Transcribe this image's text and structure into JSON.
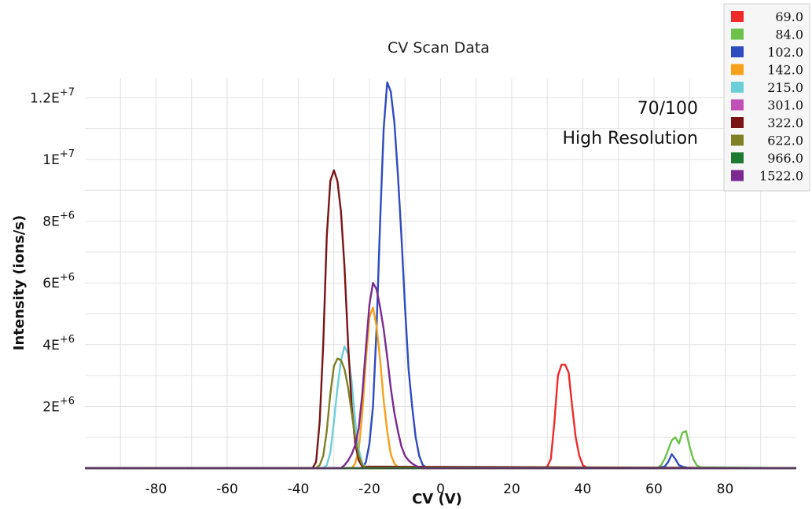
{
  "chart_data": {
    "type": "line",
    "title": "CV Scan Data",
    "xlabel": "CV (V)",
    "ylabel": "Intensity (ions/s)",
    "xlim": [
      -100,
      100
    ],
    "ylim": [
      0,
      12600000
    ],
    "x_ticks": [
      -80,
      -60,
      -40,
      -20,
      0,
      20,
      40,
      60,
      80
    ],
    "y_ticks": [
      {
        "base": "2E",
        "exp": "+6",
        "value": 2000000
      },
      {
        "base": "4E",
        "exp": "+6",
        "value": 4000000
      },
      {
        "base": "6E",
        "exp": "+6",
        "value": 6000000
      },
      {
        "base": "8E",
        "exp": "+6",
        "value": 8000000
      },
      {
        "base": "1E",
        "exp": "+7",
        "value": 10000000
      },
      {
        "base": "1.2E",
        "exp": "+7",
        "value": 12000000
      }
    ],
    "grid": true,
    "legend_position": "top-right",
    "annotations": [
      "70/100",
      "High Resolution"
    ],
    "series": [
      {
        "name": "69.0",
        "color": "#ee2a2a",
        "points": [
          [
            -100,
            0
          ],
          [
            29,
            0
          ],
          [
            30,
            0.05
          ],
          [
            31,
            0.3
          ],
          [
            32,
            1.5
          ],
          [
            33,
            3.0
          ],
          [
            34,
            3.35
          ],
          [
            35,
            3.35
          ],
          [
            36,
            3.1
          ],
          [
            37,
            2.0
          ],
          [
            38,
            1.0
          ],
          [
            39,
            0.4
          ],
          [
            40,
            0.1
          ],
          [
            41,
            0.02
          ],
          [
            100,
            0
          ]
        ]
      },
      {
        "name": "84.0",
        "color": "#6cc24a",
        "points": [
          [
            -100,
            0
          ],
          [
            61,
            0
          ],
          [
            62,
            0.1
          ],
          [
            63,
            0.3
          ],
          [
            64,
            0.6
          ],
          [
            65,
            0.9
          ],
          [
            66,
            1.0
          ],
          [
            67,
            0.8
          ],
          [
            68,
            1.15
          ],
          [
            69,
            1.2
          ],
          [
            70,
            0.7
          ],
          [
            71,
            0.3
          ],
          [
            72,
            0.1
          ],
          [
            73,
            0.03
          ],
          [
            100,
            0
          ]
        ]
      },
      {
        "name": "102.0",
        "color": "#2e4bbf",
        "points": [
          [
            -100,
            0
          ],
          [
            -22,
            0
          ],
          [
            -21,
            0.2
          ],
          [
            -20,
            0.8
          ],
          [
            -19,
            2.0
          ],
          [
            -18,
            4.5
          ],
          [
            -17,
            8.0
          ],
          [
            -16,
            11.0
          ],
          [
            -15,
            12.5
          ],
          [
            -14,
            12.2
          ],
          [
            -13,
            11.2
          ],
          [
            -12,
            9.5
          ],
          [
            -11,
            7.5
          ],
          [
            -10,
            5.2
          ],
          [
            -9,
            3.2
          ],
          [
            -8,
            2.0
          ],
          [
            -7,
            1.0
          ],
          [
            -6,
            0.4
          ],
          [
            -5,
            0.1
          ],
          [
            -4,
            0.02
          ],
          [
            60,
            0
          ],
          [
            63,
            0.05
          ],
          [
            64,
            0.2
          ],
          [
            65,
            0.45
          ],
          [
            66,
            0.3
          ],
          [
            67,
            0.1
          ],
          [
            68,
            0.05
          ],
          [
            70,
            0
          ],
          [
            100,
            0
          ]
        ]
      },
      {
        "name": "142.0",
        "color": "#f5a11a",
        "points": [
          [
            -100,
            0
          ],
          [
            -25,
            0
          ],
          [
            -24,
            0.15
          ],
          [
            -23,
            0.6
          ],
          [
            -22,
            1.8
          ],
          [
            -21,
            3.5
          ],
          [
            -20,
            4.9
          ],
          [
            -19,
            5.2
          ],
          [
            -18,
            4.6
          ],
          [
            -17,
            3.5
          ],
          [
            -16,
            2.2
          ],
          [
            -15,
            1.2
          ],
          [
            -14,
            0.45
          ],
          [
            -13,
            0.15
          ],
          [
            -12,
            0.03
          ],
          [
            100,
            0
          ]
        ]
      },
      {
        "name": "215.0",
        "color": "#6ccfd8",
        "points": [
          [
            -100,
            0
          ],
          [
            -33,
            0
          ],
          [
            -32,
            0.1
          ],
          [
            -31,
            0.5
          ],
          [
            -30,
            1.5
          ],
          [
            -29,
            2.6
          ],
          [
            -28,
            3.5
          ],
          [
            -27,
            3.95
          ],
          [
            -26,
            3.7
          ],
          [
            -25,
            2.8
          ],
          [
            -24,
            1.5
          ],
          [
            -23,
            0.6
          ],
          [
            -22,
            0.15
          ],
          [
            -21,
            0.02
          ],
          [
            100,
            0
          ]
        ]
      },
      {
        "name": "301.0",
        "color": "#c050b5",
        "points": [
          [
            -100,
            0
          ],
          [
            100,
            0
          ]
        ]
      },
      {
        "name": "322.0",
        "color": "#7a1414",
        "points": [
          [
            -100,
            0
          ],
          [
            -36,
            0
          ],
          [
            -35,
            0.2
          ],
          [
            -34,
            1.5
          ],
          [
            -33,
            4.0
          ],
          [
            -32,
            7.5
          ],
          [
            -31,
            9.3
          ],
          [
            -30,
            9.65
          ],
          [
            -29,
            9.3
          ],
          [
            -28,
            8.3
          ],
          [
            -27,
            6.5
          ],
          [
            -26,
            4.0
          ],
          [
            -25,
            2.0
          ],
          [
            -24,
            0.8
          ],
          [
            -23,
            0.25
          ],
          [
            -22,
            0.05
          ],
          [
            100,
            0
          ]
        ]
      },
      {
        "name": "622.0",
        "color": "#7f7f25",
        "points": [
          [
            -100,
            0
          ],
          [
            -35,
            0
          ],
          [
            -34,
            0.1
          ],
          [
            -33,
            0.4
          ],
          [
            -32,
            1.2
          ],
          [
            -31,
            2.4
          ],
          [
            -30,
            3.3
          ],
          [
            -29,
            3.55
          ],
          [
            -28,
            3.5
          ],
          [
            -27,
            3.2
          ],
          [
            -26,
            2.6
          ],
          [
            -25,
            1.8
          ],
          [
            -24,
            1.0
          ],
          [
            -23,
            0.4
          ],
          [
            -22,
            0.1
          ],
          [
            -21,
            0.02
          ],
          [
            100,
            0
          ]
        ]
      },
      {
        "name": "966.0",
        "color": "#1e7a30",
        "points": [
          [
            -100,
            0
          ],
          [
            100,
            0
          ]
        ]
      },
      {
        "name": "1522.0",
        "color": "#7a2a8f",
        "points": [
          [
            -100,
            0
          ],
          [
            -28,
            0
          ],
          [
            -27,
            0.1
          ],
          [
            -26,
            0.25
          ],
          [
            -25,
            0.45
          ],
          [
            -24,
            0.75
          ],
          [
            -23,
            1.3
          ],
          [
            -22,
            2.4
          ],
          [
            -21,
            3.9
          ],
          [
            -20,
            5.3
          ],
          [
            -19,
            6.0
          ],
          [
            -18,
            5.8
          ],
          [
            -17,
            5.2
          ],
          [
            -16,
            4.5
          ],
          [
            -15,
            3.6
          ],
          [
            -14,
            2.6
          ],
          [
            -13,
            1.8
          ],
          [
            -12,
            1.2
          ],
          [
            -11,
            0.7
          ],
          [
            -10,
            0.4
          ],
          [
            -9,
            0.25
          ],
          [
            -8,
            0.15
          ],
          [
            -7,
            0.08
          ],
          [
            -6,
            0.03
          ],
          [
            -5,
            0
          ],
          [
            100,
            0
          ]
        ]
      }
    ]
  }
}
